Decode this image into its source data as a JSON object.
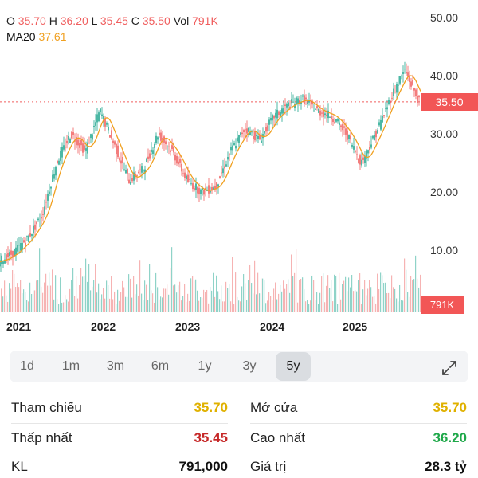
{
  "ohlc": {
    "o_label": "O",
    "o_value": "35.70",
    "h_label": "H",
    "h_value": "36.20",
    "l_label": "L",
    "l_value": "35.45",
    "c_label": "C",
    "c_value": "35.50",
    "vol_label": "Vol",
    "vol_value": "791K"
  },
  "ma": {
    "label": "MA20",
    "value": "37.61"
  },
  "y_ticks": [
    "50.00",
    "40.00",
    "30.00",
    "20.00",
    "10.00"
  ],
  "current_price_tag": "35.50",
  "volume_tag": "791K",
  "x_ticks": [
    "2021",
    "2022",
    "2023",
    "2024",
    "2025"
  ],
  "periods": [
    "1d",
    "1m",
    "3m",
    "6m",
    "1y",
    "3y",
    "5y"
  ],
  "active_period": "5y",
  "stats": {
    "reference_label": "Tham chiếu",
    "reference_value": "35.70",
    "open_label": "Mở cửa",
    "open_value": "35.70",
    "low_label": "Thấp nhất",
    "low_value": "35.45",
    "high_label": "Cao nhất",
    "high_value": "36.20",
    "volume_label": "KL",
    "volume_value": "791,000",
    "turnover_label": "Giá trị",
    "turnover_value": "28.3 tỷ"
  },
  "colors": {
    "up": "#21a68f",
    "down": "#f05d5d",
    "ma": "#f0a020",
    "reference": "#e0b100",
    "low": "#c62828",
    "high": "#1fa84a"
  },
  "chart_data": {
    "type": "line",
    "title": "",
    "xlabel": "",
    "ylabel": "",
    "ylim": [
      0,
      50
    ],
    "x": [
      "2020-10",
      "2021-01",
      "2021-04",
      "2021-07",
      "2021-10",
      "2022-01",
      "2022-02",
      "2022-03",
      "2022-04",
      "2022-05",
      "2022-06",
      "2022-07",
      "2022-09",
      "2022-11",
      "2023-01",
      "2023-04",
      "2023-07",
      "2023-10",
      "2024-01",
      "2024-04",
      "2024-06",
      "2024-09",
      "2024-11",
      "2025-01",
      "2025-03",
      "2025-04",
      "2025-05",
      "2025-07",
      "2025-08",
      "2025-09"
    ],
    "series": [
      {
        "values": [
          8,
          9.5,
          12,
          16,
          25,
          30,
          27,
          34,
          28,
          22,
          24,
          30,
          27,
          22,
          20,
          21,
          27,
          31,
          29,
          33,
          35,
          36,
          34,
          33,
          30,
          25,
          30,
          36,
          41,
          35.5
        ]
      }
    ],
    "grid": false,
    "legend": "none"
  }
}
